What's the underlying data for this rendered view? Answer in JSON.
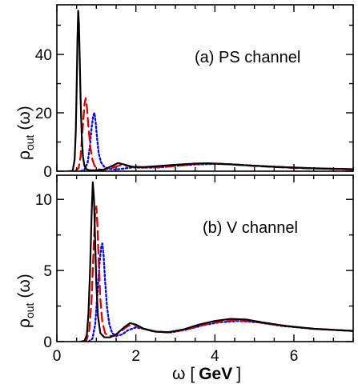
{
  "chart_data": [
    {
      "type": "line",
      "panel_label": "(a) PS channel",
      "ylabel": {
        "main": "ρ",
        "sub": "out",
        "arg": "(ω)"
      },
      "xlim": [
        0,
        7.5
      ],
      "ylim": [
        0,
        57
      ],
      "yticks": [
        0,
        20,
        40
      ],
      "xticks": [
        0,
        2,
        4,
        6
      ],
      "show_x_tick_labels": false,
      "grid": false,
      "series": [
        {
          "color": "#000000",
          "dash": "solid",
          "x": [
            0.3,
            0.4,
            0.45,
            0.48,
            0.5,
            0.52,
            0.54,
            0.56,
            0.58,
            0.6,
            0.63,
            0.66,
            0.7,
            0.75,
            0.8,
            0.9,
            1.0,
            1.2,
            1.4,
            1.55,
            1.7,
            1.9,
            2.2,
            2.6,
            3.0,
            3.5,
            3.8,
            4.2,
            4.8,
            5.5,
            6.5,
            7.5
          ],
          "y": [
            0.0,
            0.1,
            4.0,
            14.0,
            28.0,
            44.0,
            55.0,
            50.0,
            38.0,
            25.0,
            12.0,
            5.0,
            1.8,
            0.7,
            0.4,
            0.3,
            0.3,
            0.6,
            1.8,
            2.8,
            2.3,
            1.5,
            1.4,
            1.8,
            2.2,
            2.6,
            2.7,
            2.5,
            2.0,
            1.5,
            1.0,
            0.7
          ]
        },
        {
          "color": "#dd0000",
          "dash": "long-dash",
          "x": [
            0.45,
            0.55,
            0.6,
            0.65,
            0.7,
            0.73,
            0.76,
            0.8,
            0.85,
            0.9,
            0.95,
            1.0,
            1.1,
            1.2,
            1.4,
            1.6,
            1.8,
            2.0,
            2.5,
            3.0,
            3.5,
            3.9,
            4.3,
            5.0,
            6.0,
            7.5
          ],
          "y": [
            0.0,
            1.0,
            5.0,
            14.0,
            23.0,
            25.0,
            22.0,
            15.0,
            8.0,
            4.0,
            2.0,
            1.0,
            0.5,
            0.5,
            1.2,
            2.0,
            1.8,
            1.3,
            1.3,
            1.8,
            2.4,
            2.6,
            2.4,
            1.8,
            1.1,
            0.6
          ]
        },
        {
          "color": "#0000ee",
          "dash": "dot",
          "x": [
            0.6,
            0.7,
            0.78,
            0.84,
            0.88,
            0.92,
            0.95,
            0.98,
            1.02,
            1.06,
            1.12,
            1.2,
            1.3,
            1.5,
            1.7,
            1.9,
            2.2,
            2.6,
            3.0,
            3.5,
            4.0,
            4.4,
            5.0,
            6.0,
            7.5
          ],
          "y": [
            0.0,
            0.5,
            3.0,
            9.0,
            15.0,
            19.0,
            20.0,
            17.0,
            11.0,
            6.0,
            3.0,
            1.5,
            0.8,
            0.6,
            0.9,
            1.3,
            1.2,
            1.3,
            1.8,
            2.3,
            2.5,
            2.4,
            1.9,
            1.2,
            0.6
          ]
        }
      ]
    },
    {
      "type": "line",
      "panel_label": "(b) V channel",
      "ylabel": {
        "main": "ρ",
        "sub": "out",
        "arg": "(ω)"
      },
      "xlabel": {
        "main": "ω",
        "open": "[",
        "unit": "GeV",
        "close": "]"
      },
      "xlim": [
        0,
        7.5
      ],
      "ylim": [
        0,
        11.7
      ],
      "yticks": [
        0,
        5,
        10
      ],
      "xticks": [
        0,
        2,
        4,
        6
      ],
      "xtick_labels": [
        "0",
        "2",
        "4",
        "6"
      ],
      "grid": false,
      "series": [
        {
          "color": "#000000",
          "dash": "solid",
          "x": [
            0.6,
            0.7,
            0.76,
            0.8,
            0.84,
            0.88,
            0.91,
            0.94,
            0.97,
            1.0,
            1.04,
            1.1,
            1.2,
            1.35,
            1.5,
            1.7,
            1.85,
            2.0,
            2.2,
            2.5,
            2.8,
            3.2,
            3.6,
            4.0,
            4.4,
            4.8,
            5.2,
            5.8,
            6.5,
            7.5
          ],
          "y": [
            0.0,
            0.05,
            0.5,
            2.0,
            5.0,
            9.0,
            11.2,
            10.0,
            7.0,
            4.0,
            1.8,
            0.6,
            0.3,
            0.3,
            0.5,
            1.0,
            1.3,
            1.2,
            0.9,
            0.7,
            0.65,
            0.85,
            1.2,
            1.45,
            1.6,
            1.55,
            1.35,
            1.1,
            0.9,
            0.75
          ]
        },
        {
          "color": "#dd0000",
          "dash": "long-dash",
          "x": [
            0.65,
            0.75,
            0.82,
            0.88,
            0.93,
            0.97,
            1.0,
            1.03,
            1.06,
            1.1,
            1.15,
            1.22,
            1.3,
            1.45,
            1.6,
            1.8,
            1.95,
            2.1,
            2.4,
            2.8,
            3.2,
            3.6,
            4.0,
            4.5,
            5.0,
            5.6,
            6.5,
            7.5
          ],
          "y": [
            0.0,
            0.1,
            0.8,
            3.0,
            6.5,
            9.0,
            9.5,
            8.0,
            5.5,
            3.0,
            1.4,
            0.6,
            0.4,
            0.4,
            0.7,
            1.1,
            1.2,
            1.0,
            0.75,
            0.65,
            0.8,
            1.1,
            1.35,
            1.5,
            1.4,
            1.15,
            0.9,
            0.75
          ]
        },
        {
          "color": "#0000ee",
          "dash": "dot",
          "x": [
            0.8,
            0.9,
            0.97,
            1.03,
            1.08,
            1.12,
            1.15,
            1.18,
            1.22,
            1.27,
            1.33,
            1.4,
            1.5,
            1.65,
            1.8,
            2.0,
            2.2,
            2.5,
            2.9,
            3.3,
            3.7,
            4.1,
            4.6,
            5.1,
            5.7,
            6.5,
            7.5
          ],
          "y": [
            0.0,
            0.2,
            1.2,
            3.5,
            5.5,
            6.6,
            6.9,
            6.2,
            4.3,
            2.4,
            1.2,
            0.6,
            0.4,
            0.5,
            0.8,
            1.0,
            0.9,
            0.7,
            0.65,
            0.85,
            1.15,
            1.35,
            1.45,
            1.35,
            1.1,
            0.9,
            0.75
          ]
        }
      ]
    }
  ]
}
